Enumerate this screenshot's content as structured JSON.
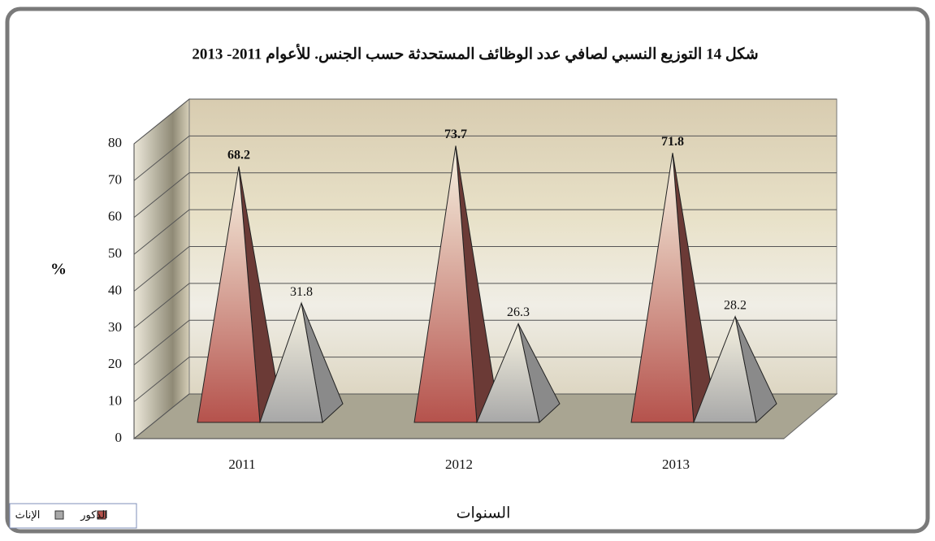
{
  "chart_data": {
    "type": "pyramid3d",
    "title": "شكل 14 التوزيع النسبي لصافي عدد الوظائف المستحدثة حسب الجنس. للأعوام  2011- 2013",
    "ylabel": "%",
    "xlabel": "السنوات",
    "categories": [
      "2011",
      "2012",
      "2013"
    ],
    "series": [
      {
        "name": "الذكور",
        "color": "#b5524c",
        "values": [
          68.2,
          73.7,
          71.8
        ]
      },
      {
        "name": "الإناث",
        "color": "#a8a8a8",
        "values": [
          31.8,
          26.3,
          28.2
        ]
      }
    ],
    "ylim": [
      0,
      80
    ],
    "yticks": [
      0,
      10,
      20,
      30,
      40,
      50,
      60,
      70,
      80
    ],
    "grid": true
  }
}
